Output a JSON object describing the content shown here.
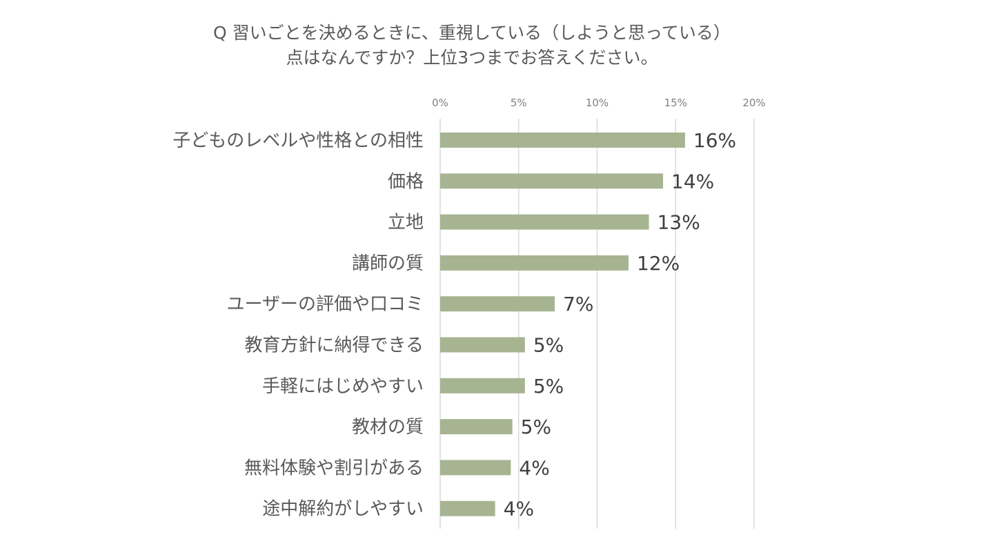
{
  "chart_data": {
    "type": "bar",
    "orientation": "horizontal",
    "title": "Q 習いごとを決めるときに、重視している（しようと思っている）点はなんですか？上位3つまでお答えください。",
    "title_lines": [
      "Q 習いごとを決めるときに、重視している（しようと思っている）",
      "点はなんですか？上位3つまでお答えください。"
    ],
    "xlabel": "",
    "ylabel": "",
    "xlim": [
      0,
      20
    ],
    "x_ticks": [
      0,
      5,
      10,
      15,
      20
    ],
    "x_tick_labels": [
      "0%",
      "5%",
      "10%",
      "15%",
      "20%"
    ],
    "x_axis_position": "top",
    "grid": true,
    "legend": "none",
    "bar_color": "#a6b491",
    "categories": [
      "子どものレベルや性格との相性",
      "価格",
      "立地",
      "講師の質",
      "ユーザーの評価や口コミ",
      "教育方針に納得できる",
      "手軽にはじめやすい",
      "教材の質",
      "無料体験や割引がある",
      "途中解約がしやすい"
    ],
    "values": [
      15.6,
      14.2,
      13.3,
      12.0,
      7.3,
      5.4,
      5.4,
      4.6,
      4.5,
      3.5
    ],
    "value_labels": [
      "16%",
      "14%",
      "13%",
      "12%",
      "7%",
      "5%",
      "5%",
      "5%",
      "4%",
      "4%"
    ]
  }
}
